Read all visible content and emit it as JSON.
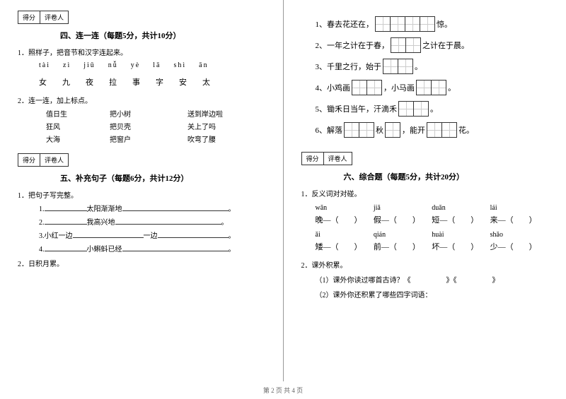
{
  "scoreBox": {
    "left": "得分",
    "right": "评卷人"
  },
  "sec4": {
    "title": "四、连一连（每题5分，共计10分）",
    "q1": "1．照样子，把音节和汉字连起来。",
    "pinyin": [
      "tài",
      "zì",
      "jiǔ",
      "nǚ",
      "yè",
      "lā",
      "shì",
      "ān"
    ],
    "hanzi": [
      "女",
      "九",
      "夜",
      "拉",
      "事",
      "字",
      "安",
      "太"
    ],
    "q2": "2．连一连，加上标点。",
    "pairs": [
      [
        "值日生",
        "把小树",
        "送到岸边啦"
      ],
      [
        "狂风",
        "把贝壳",
        "关上了吗"
      ],
      [
        "大海",
        "把窗户",
        "吹弯了腰"
      ]
    ]
  },
  "sec5": {
    "title": "五、补充句子（每题6分，共计12分）",
    "q1": "1．把句子写完整。",
    "lines": [
      {
        "n": "1.",
        "pre": "",
        "mid": "太阳渐渐地",
        "post": "。"
      },
      {
        "n": "2.",
        "pre": "",
        "mid": "我高兴地",
        "post": "。"
      },
      {
        "n": "3.",
        "pre": "小红一边",
        "mid": "一边",
        "post": "。"
      },
      {
        "n": "4.",
        "pre": "",
        "mid": "小蝌蚪已经",
        "post": "。"
      }
    ],
    "q2": "2．日积月累。"
  },
  "right": {
    "lines": [
      {
        "n": "1、",
        "a": "春去花还在，",
        "boxes": 4,
        "b": "惊。"
      },
      {
        "n": "2、",
        "a": "一年之计在于春，",
        "boxes": 2,
        "b": "之计在于晨。"
      },
      {
        "n": "3、",
        "a": "千里之行，始于",
        "boxes": 2,
        "b": "。"
      },
      {
        "n": "4、",
        "a": "小鸡画",
        "boxes": 2,
        "b": "，小马画",
        "boxes2": 2,
        "c": "。"
      },
      {
        "n": "5、",
        "a": "锄禾日当午，汗滴禾",
        "boxes": 2,
        "b": "。"
      },
      {
        "n": "6、",
        "a": "解落",
        "boxes": 2,
        "b": "秋",
        "boxes2": 1,
        "c": "，能开",
        "boxes3": 2,
        "d": "花。"
      }
    ]
  },
  "sec6": {
    "title": "六、综合题（每题5分，共计20分）",
    "q1": "1．反义词对对碰。",
    "row1": [
      {
        "p": "wǎn",
        "c": "晚—（　　）"
      },
      {
        "p": "jiǎ",
        "c": "假—（　　）"
      },
      {
        "p": "duǎn",
        "c": "短—（　　）"
      },
      {
        "p": "lái",
        "c": "来—（　　）"
      }
    ],
    "row2": [
      {
        "p": "ǎi",
        "c": "矮—（　　）"
      },
      {
        "p": "qián",
        "c": "前—（　　）"
      },
      {
        "p": "huài",
        "c": "坏—（　　）"
      },
      {
        "p": "shǎo",
        "c": "少—（　　）"
      }
    ],
    "q2": "2．课外积累。",
    "q2a": "（1）课外你读过哪首古诗？《　　　　　》《　　　　　》",
    "q2b": "（2）课外你还积累了哪些四字词语："
  },
  "footer": "第 2 页 共 4 页"
}
